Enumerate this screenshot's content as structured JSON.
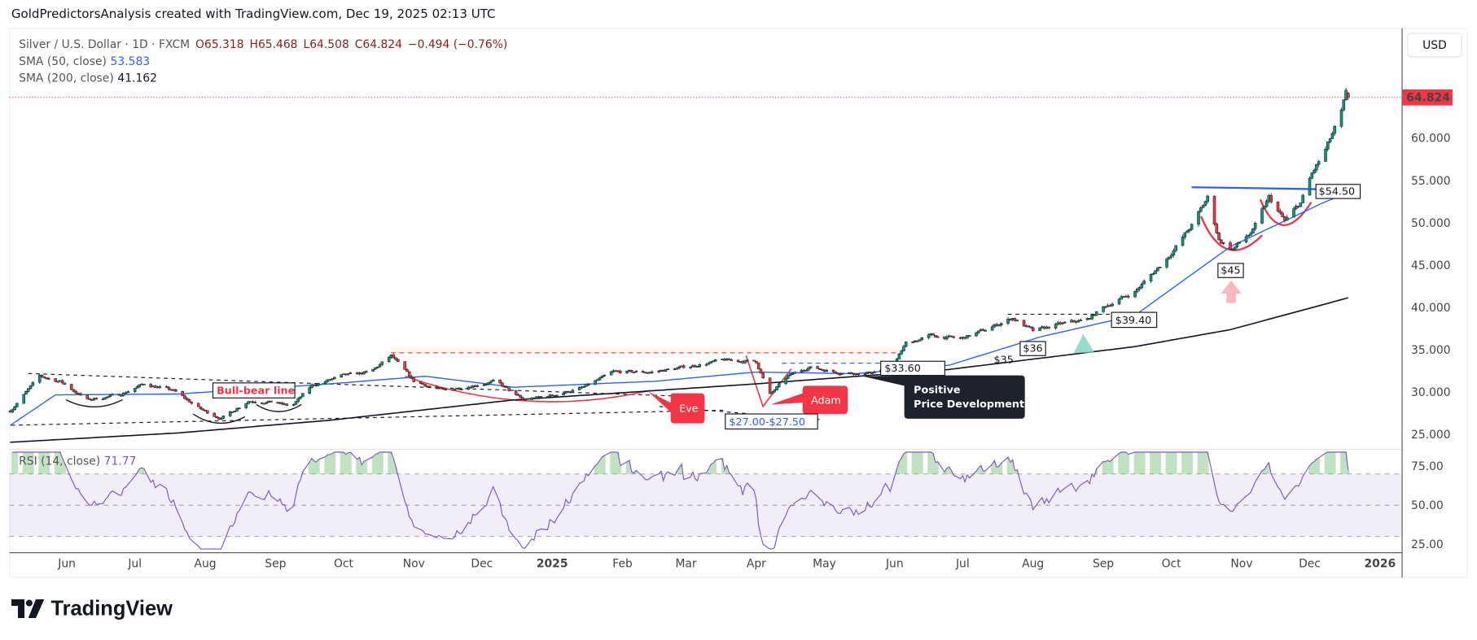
{
  "attribution": "GoldPredictorsAnalysis created with TradingView.com, Dec 19, 2025 02:13 UTC",
  "legend": {
    "symbol": "Silver / U.S. Dollar · 1D · FXCM",
    "open": "O65.318",
    "high": "H65.468",
    "low": "L64.508",
    "close": "C64.824",
    "change": "−0.494 (−0.76%)",
    "sma50_label": "SMA (50, close)",
    "sma50_value": "53.583",
    "sma200_label": "SMA (200, close)",
    "sma200_value": "41.162",
    "rsi_label": "RSI (14, close)",
    "rsi_value": "71.77"
  },
  "currency_button": "USD",
  "last_price_label": "64.824",
  "logo_text": "TradingView",
  "colors": {
    "up": "#089981",
    "down": "#f23645",
    "sma50": "#2962ff",
    "sma200": "#131722",
    "rsi": "#7e57c2",
    "last_price": "#f23645"
  },
  "annotations": {
    "bull_bear": "Bull-bear line",
    "eve": "Eve",
    "adam": "Adam",
    "range": "$27.00-$27.50",
    "p3360": "$33.60",
    "positive_1": "Positive",
    "positive_2": "Price Development",
    "p35": "$35",
    "p36": "$36",
    "p3940": "$39.40",
    "p45": "$45",
    "p5450": "$54.50"
  },
  "chart_data": {
    "type": "candlestick",
    "symbol": "Silver / U.S. Dollar",
    "interval": "1D",
    "ylim": [
      24,
      67
    ],
    "y_ticks": [
      25,
      30,
      35,
      40,
      45,
      50,
      55,
      60
    ],
    "x_tick_labels": [
      "Jun",
      "Jul",
      "Aug",
      "Sep",
      "Oct",
      "Nov",
      "Dec",
      "2025",
      "Feb",
      "Mar",
      "Apr",
      "May",
      "Jun",
      "Jul",
      "Aug",
      "Sep",
      "Oct",
      "Nov",
      "Dec",
      "2026"
    ],
    "last_bar": {
      "date": "2025-12-18",
      "open": 65.318,
      "high": 65.468,
      "low": 64.508,
      "close": 64.824
    },
    "close_path": [
      [
        "2024-05-07",
        27.8
      ],
      [
        "2024-05-20",
        31.9
      ],
      [
        "2024-05-29",
        31.3
      ],
      [
        "2024-06-10",
        29.1
      ],
      [
        "2024-06-24",
        29.7
      ],
      [
        "2024-07-05",
        31
      ],
      [
        "2024-07-18",
        30.2
      ],
      [
        "2024-07-30",
        28
      ],
      [
        "2024-08-08",
        26.9
      ],
      [
        "2024-08-20",
        29
      ],
      [
        "2024-09-01",
        28.8
      ],
      [
        "2024-09-08",
        28.3
      ],
      [
        "2024-09-17",
        30.8
      ],
      [
        "2024-09-30",
        31.9
      ],
      [
        "2024-10-13",
        32.4
      ],
      [
        "2024-10-22",
        34.3
      ],
      [
        "2024-11-01",
        31.3
      ],
      [
        "2024-11-14",
        30.2
      ],
      [
        "2024-11-26",
        30.8
      ],
      [
        "2024-12-07",
        31.3
      ],
      [
        "2024-12-19",
        29.1
      ],
      [
        "2025-01-02",
        29.7
      ],
      [
        "2025-01-15",
        30.6
      ],
      [
        "2025-01-28",
        32.4
      ],
      [
        "2025-02-14",
        32.4
      ],
      [
        "2025-03-01",
        33
      ],
      [
        "2025-03-18",
        33.8
      ],
      [
        "2025-04-01",
        33.6
      ],
      [
        "2025-04-07",
        29.7
      ],
      [
        "2025-04-15",
        31.9
      ],
      [
        "2025-04-24",
        33
      ],
      [
        "2025-05-06",
        32.4
      ],
      [
        "2025-05-19",
        32.2
      ],
      [
        "2025-05-31",
        33
      ],
      [
        "2025-06-06",
        35.8
      ],
      [
        "2025-06-17",
        36.7
      ],
      [
        "2025-06-30",
        36.3
      ],
      [
        "2025-07-11",
        37.4
      ],
      [
        "2025-07-23",
        38.8
      ],
      [
        "2025-08-01",
        37.2
      ],
      [
        "2025-08-12",
        38
      ],
      [
        "2025-08-25",
        38.6
      ],
      [
        "2025-09-02",
        40.2
      ],
      [
        "2025-09-15",
        41.9
      ],
      [
        "2025-09-29",
        45.8
      ],
      [
        "2025-10-10",
        49.7
      ],
      [
        "2025-10-17",
        53
      ],
      [
        "2025-10-22",
        48
      ],
      [
        "2025-10-28",
        46.9
      ],
      [
        "2025-11-06",
        49.1
      ],
      [
        "2025-11-13",
        53
      ],
      [
        "2025-11-20",
        50.2
      ],
      [
        "2025-11-27",
        52.4
      ],
      [
        "2025-12-02",
        55.8
      ],
      [
        "2025-12-08",
        58.6
      ],
      [
        "2025-12-15",
        63
      ],
      [
        "2025-12-17",
        65.2
      ],
      [
        "2025-12-18",
        64.824
      ]
    ],
    "sma50": [
      [
        "2024-05-07",
        26.1
      ],
      [
        "2024-05-27",
        29.7
      ],
      [
        "2024-07-20",
        29.8
      ],
      [
        "2024-09-25",
        31
      ],
      [
        "2024-11-06",
        31.9
      ],
      [
        "2024-12-15",
        30.6
      ],
      [
        "2025-02-15",
        31.3
      ],
      [
        "2025-04-01",
        32.4
      ],
      [
        "2025-05-15",
        32.2
      ],
      [
        "2025-06-25",
        33.2
      ],
      [
        "2025-08-05",
        36.6
      ],
      [
        "2025-09-15",
        39.1
      ],
      [
        "2025-10-27",
        47.2
      ],
      [
        "2025-12-07",
        52.4
      ],
      [
        "2025-12-18",
        53.583
      ]
    ],
    "sma200": [
      [
        "2024-05-07",
        24.1
      ],
      [
        "2024-07-20",
        25.2
      ],
      [
        "2024-09-25",
        26.7
      ],
      [
        "2024-12-15",
        29.1
      ],
      [
        "2025-04-01",
        31
      ],
      [
        "2025-06-25",
        32.7
      ],
      [
        "2025-09-15",
        35.4
      ],
      [
        "2025-10-27",
        37.4
      ],
      [
        "2025-12-18",
        41.162
      ]
    ],
    "rsi": {
      "period": 14,
      "ylim": [
        20,
        85
      ],
      "levels": [
        30,
        50,
        70
      ],
      "ticks": [
        "75.00",
        "50.00",
        "25.00"
      ],
      "last": 71.77
    }
  }
}
